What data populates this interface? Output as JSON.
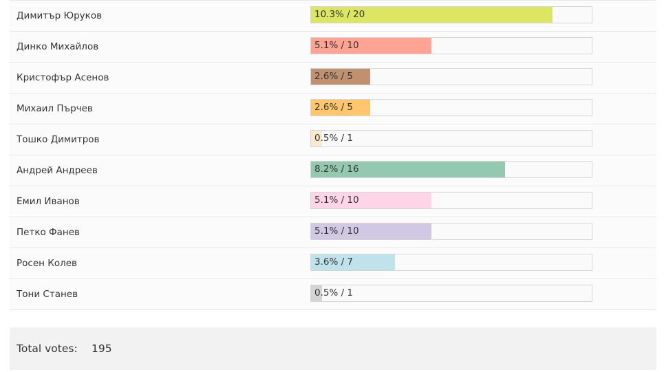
{
  "poll": {
    "rows": [
      {
        "name": "Димитър Юруков",
        "label": "10.3% / 20",
        "fraction": 0.86,
        "color": "#dce663"
      },
      {
        "name": "Динко Михайлов",
        "label": "5.1% / 10",
        "fraction": 0.43,
        "color": "#ffa494"
      },
      {
        "name": "Кристофър Асенов",
        "label": "2.6% / 5",
        "fraction": 0.21,
        "color": "#c09170"
      },
      {
        "name": "Михаил Пърчев",
        "label": "2.6% / 5",
        "fraction": 0.21,
        "color": "#ffc66e"
      },
      {
        "name": "Тошко Димитров",
        "label": "0.5% / 1",
        "fraction": 0.04,
        "color": "#f7ead0"
      },
      {
        "name": "Андрей Андреев",
        "label": "8.2% / 16",
        "fraction": 0.69,
        "color": "#94c9b0"
      },
      {
        "name": "Емил Иванов",
        "label": "5.1% / 10",
        "fraction": 0.43,
        "color": "#fdd5e6"
      },
      {
        "name": "Петко Фанев",
        "label": "5.1% / 10",
        "fraction": 0.43,
        "color": "#d1c9e4"
      },
      {
        "name": "Росен Колев",
        "label": "3.6% / 7",
        "fraction": 0.3,
        "color": "#c0e2ea"
      },
      {
        "name": "Тони Станев",
        "label": "0.5% / 1",
        "fraction": 0.04,
        "color": "#d4d4d4"
      }
    ],
    "total": {
      "label": "Total votes:",
      "value": "195"
    }
  }
}
